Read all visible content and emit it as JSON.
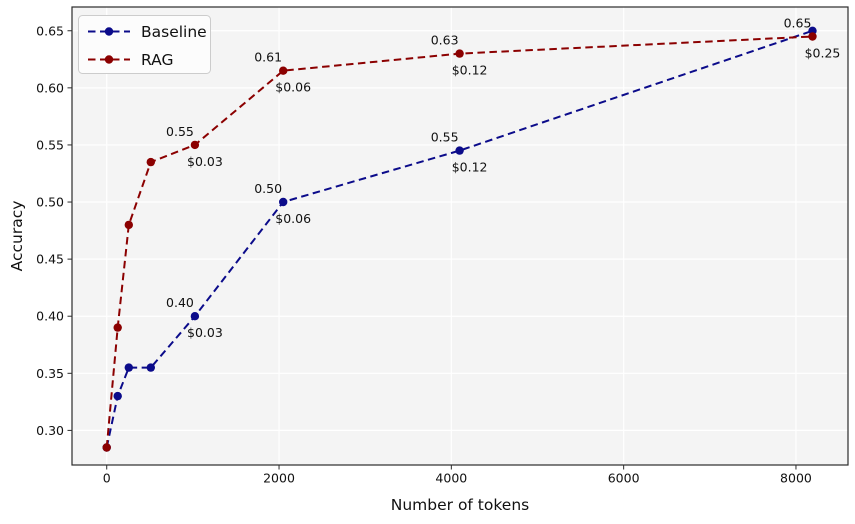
{
  "figure": {
    "background": "#ffffff",
    "plot_background": "#f4f4f4",
    "grid_color": "#ffffff",
    "spine_color": "#2b2b2b",
    "tick_color": "#2b2b2b",
    "text_color": "#111111",
    "legend": {
      "background": "#fcfcfc",
      "border": "#cccccc"
    }
  },
  "chart_data": {
    "type": "line",
    "title": "",
    "xlabel": "Number of tokens",
    "ylabel": "Accuracy",
    "xlim": [
      -403,
      8604
    ],
    "ylim": [
      0.2697,
      0.6708
    ],
    "grid": true,
    "legend_position": "upper left",
    "x_ticks": [
      {
        "v": 0,
        "label": "0"
      },
      {
        "v": 2000,
        "label": "2000"
      },
      {
        "v": 4000,
        "label": "4000"
      },
      {
        "v": 6000,
        "label": "6000"
      },
      {
        "v": 8000,
        "label": "8000"
      }
    ],
    "y_ticks": [
      {
        "v": 0.3,
        "label": "0.30"
      },
      {
        "v": 0.35,
        "label": "0.35"
      },
      {
        "v": 0.4,
        "label": "0.40"
      },
      {
        "v": 0.45,
        "label": "0.45"
      },
      {
        "v": 0.5,
        "label": "0.50"
      },
      {
        "v": 0.55,
        "label": "0.55"
      },
      {
        "v": 0.6,
        "label": "0.60"
      },
      {
        "v": 0.65,
        "label": "0.65"
      }
    ],
    "x": [
      0,
      128,
      256,
      512,
      1024,
      2048,
      4096,
      8192
    ],
    "series": [
      {
        "name": "Baseline",
        "color": "#0b0b8a",
        "linestyle": "dashed",
        "marker": "circle",
        "values": [
          0.285,
          0.33,
          0.355,
          0.355,
          0.4,
          0.5,
          0.545,
          0.65
        ]
      },
      {
        "name": "RAG",
        "color": "#8b0000",
        "linestyle": "dashed",
        "marker": "circle",
        "values": [
          0.285,
          0.39,
          0.48,
          0.535,
          0.55,
          0.615,
          0.63,
          0.645
        ]
      }
    ],
    "annotations": [
      {
        "series": "Baseline",
        "x": 1024,
        "y": 0.4,
        "acc_label": "0.40",
        "cost_label": "$0.03"
      },
      {
        "series": "Baseline",
        "x": 2048,
        "y": 0.5,
        "acc_label": "0.50",
        "cost_label": "$0.06"
      },
      {
        "series": "Baseline",
        "x": 4096,
        "y": 0.545,
        "acc_label": "0.55",
        "cost_label": "$0.12"
      },
      {
        "series": "RAG",
        "x": 1024,
        "y": 0.55,
        "acc_label": "0.55",
        "cost_label": "$0.03"
      },
      {
        "series": "RAG",
        "x": 2048,
        "y": 0.615,
        "acc_label": "0.61",
        "cost_label": "$0.06"
      },
      {
        "series": "RAG",
        "x": 4096,
        "y": 0.63,
        "acc_label": "0.63",
        "cost_label": "$0.12"
      },
      {
        "series": "RAG",
        "x": 8192,
        "y": 0.645,
        "acc_label": "0.65",
        "cost_label": "$0.25"
      }
    ]
  }
}
